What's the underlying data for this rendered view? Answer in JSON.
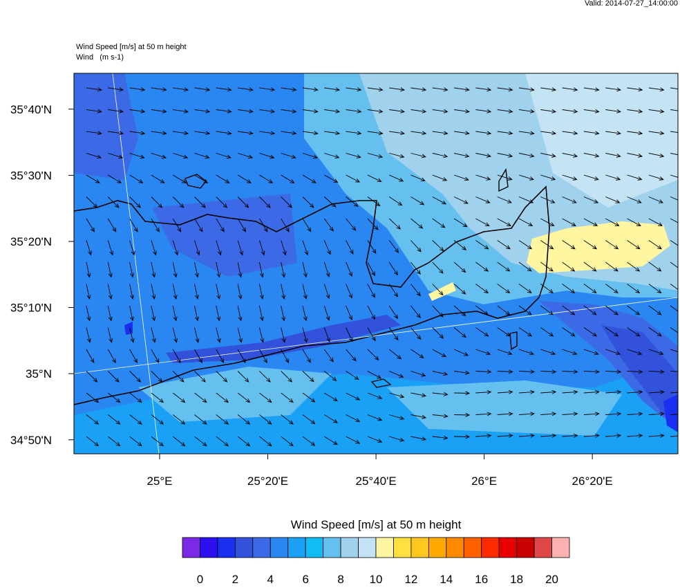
{
  "valid": "Valid: 2014-07-27_14:00:00",
  "title": "Wind Speed [m/s] at 50 m height",
  "subtitle": "Wind   (m s-1)",
  "map": {
    "xlim": [
      24.736,
      26.597
    ],
    "ylim": [
      34.798,
      35.757
    ],
    "xticks": [
      {
        "value": 25,
        "label": "25°E"
      },
      {
        "value": 25.3333,
        "label": "25°20'E"
      },
      {
        "value": 25.6667,
        "label": "25°40'E"
      },
      {
        "value": 26,
        "label": "26°E"
      },
      {
        "value": 26.3333,
        "label": "26°20'E"
      }
    ],
    "yticks": [
      {
        "value": 35.6667,
        "label": "35°40'N"
      },
      {
        "value": 35.5,
        "label": "35°30'N"
      },
      {
        "value": 35.3333,
        "label": "35°20'N"
      },
      {
        "value": 35.1667,
        "label": "35°10'N"
      },
      {
        "value": 35,
        "label": "35°N"
      },
      {
        "value": 34.8333,
        "label": "34°50'N"
      }
    ]
  },
  "colorbar": {
    "title": "Wind Speed [m/s] at 50 m height",
    "lim": [
      -1,
      21
    ],
    "ticks": [
      0,
      2,
      4,
      6,
      8,
      10,
      12,
      14,
      16,
      18,
      20
    ],
    "colors": [
      "#7a2ae6",
      "#2d10f0",
      "#1a30f0",
      "#3352dc",
      "#3c6ae6",
      "#2a86f0",
      "#1aa0f5",
      "#10bcf5",
      "#66c0ef",
      "#a0d2ee",
      "#c4e4f5",
      "#fff6a2",
      "#ffe040",
      "#ffc820",
      "#ffaa00",
      "#ff8a00",
      "#ff6000",
      "#ff2a00",
      "#e80000",
      "#c80000",
      "#e04848",
      "#ffb0b0"
    ]
  }
}
